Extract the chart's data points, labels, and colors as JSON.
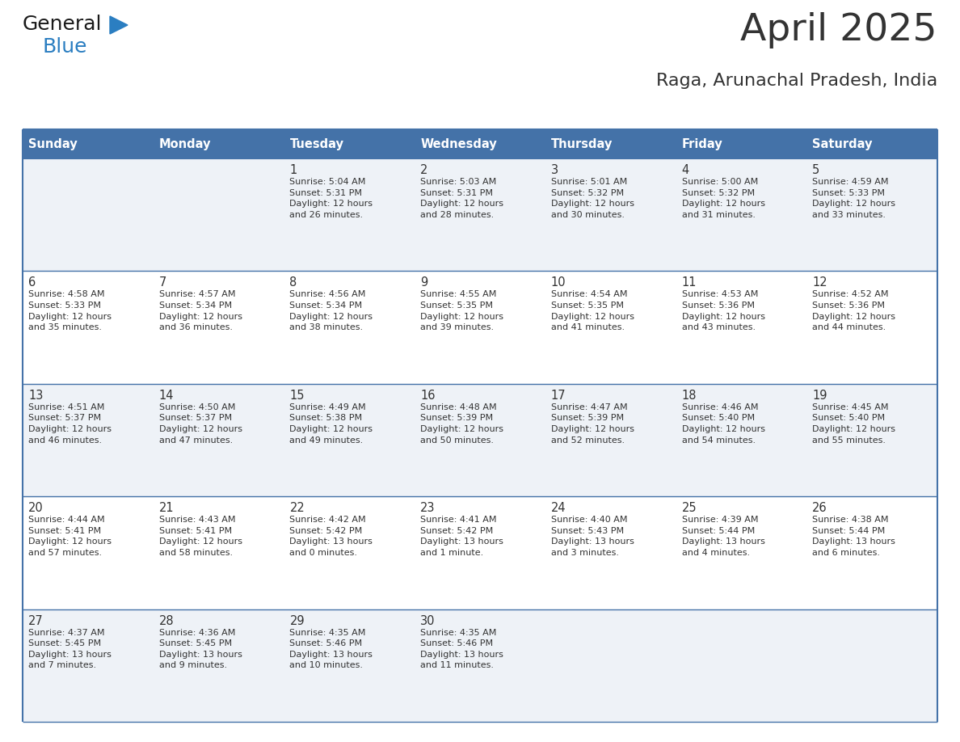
{
  "title": "April 2025",
  "subtitle": "Raga, Arunachal Pradesh, India",
  "header_bg": "#4472a8",
  "header_text_color": "#ffffff",
  "odd_row_bg": "#eef2f7",
  "even_row_bg": "#ffffff",
  "border_color": "#4472a8",
  "text_color": "#333333",
  "days_of_week": [
    "Sunday",
    "Monday",
    "Tuesday",
    "Wednesday",
    "Thursday",
    "Friday",
    "Saturday"
  ],
  "weeks": [
    [
      {
        "day": "",
        "info": ""
      },
      {
        "day": "",
        "info": ""
      },
      {
        "day": "1",
        "info": "Sunrise: 5:04 AM\nSunset: 5:31 PM\nDaylight: 12 hours\nand 26 minutes."
      },
      {
        "day": "2",
        "info": "Sunrise: 5:03 AM\nSunset: 5:31 PM\nDaylight: 12 hours\nand 28 minutes."
      },
      {
        "day": "3",
        "info": "Sunrise: 5:01 AM\nSunset: 5:32 PM\nDaylight: 12 hours\nand 30 minutes."
      },
      {
        "day": "4",
        "info": "Sunrise: 5:00 AM\nSunset: 5:32 PM\nDaylight: 12 hours\nand 31 minutes."
      },
      {
        "day": "5",
        "info": "Sunrise: 4:59 AM\nSunset: 5:33 PM\nDaylight: 12 hours\nand 33 minutes."
      }
    ],
    [
      {
        "day": "6",
        "info": "Sunrise: 4:58 AM\nSunset: 5:33 PM\nDaylight: 12 hours\nand 35 minutes."
      },
      {
        "day": "7",
        "info": "Sunrise: 4:57 AM\nSunset: 5:34 PM\nDaylight: 12 hours\nand 36 minutes."
      },
      {
        "day": "8",
        "info": "Sunrise: 4:56 AM\nSunset: 5:34 PM\nDaylight: 12 hours\nand 38 minutes."
      },
      {
        "day": "9",
        "info": "Sunrise: 4:55 AM\nSunset: 5:35 PM\nDaylight: 12 hours\nand 39 minutes."
      },
      {
        "day": "10",
        "info": "Sunrise: 4:54 AM\nSunset: 5:35 PM\nDaylight: 12 hours\nand 41 minutes."
      },
      {
        "day": "11",
        "info": "Sunrise: 4:53 AM\nSunset: 5:36 PM\nDaylight: 12 hours\nand 43 minutes."
      },
      {
        "day": "12",
        "info": "Sunrise: 4:52 AM\nSunset: 5:36 PM\nDaylight: 12 hours\nand 44 minutes."
      }
    ],
    [
      {
        "day": "13",
        "info": "Sunrise: 4:51 AM\nSunset: 5:37 PM\nDaylight: 12 hours\nand 46 minutes."
      },
      {
        "day": "14",
        "info": "Sunrise: 4:50 AM\nSunset: 5:37 PM\nDaylight: 12 hours\nand 47 minutes."
      },
      {
        "day": "15",
        "info": "Sunrise: 4:49 AM\nSunset: 5:38 PM\nDaylight: 12 hours\nand 49 minutes."
      },
      {
        "day": "16",
        "info": "Sunrise: 4:48 AM\nSunset: 5:39 PM\nDaylight: 12 hours\nand 50 minutes."
      },
      {
        "day": "17",
        "info": "Sunrise: 4:47 AM\nSunset: 5:39 PM\nDaylight: 12 hours\nand 52 minutes."
      },
      {
        "day": "18",
        "info": "Sunrise: 4:46 AM\nSunset: 5:40 PM\nDaylight: 12 hours\nand 54 minutes."
      },
      {
        "day": "19",
        "info": "Sunrise: 4:45 AM\nSunset: 5:40 PM\nDaylight: 12 hours\nand 55 minutes."
      }
    ],
    [
      {
        "day": "20",
        "info": "Sunrise: 4:44 AM\nSunset: 5:41 PM\nDaylight: 12 hours\nand 57 minutes."
      },
      {
        "day": "21",
        "info": "Sunrise: 4:43 AM\nSunset: 5:41 PM\nDaylight: 12 hours\nand 58 minutes."
      },
      {
        "day": "22",
        "info": "Sunrise: 4:42 AM\nSunset: 5:42 PM\nDaylight: 13 hours\nand 0 minutes."
      },
      {
        "day": "23",
        "info": "Sunrise: 4:41 AM\nSunset: 5:42 PM\nDaylight: 13 hours\nand 1 minute."
      },
      {
        "day": "24",
        "info": "Sunrise: 4:40 AM\nSunset: 5:43 PM\nDaylight: 13 hours\nand 3 minutes."
      },
      {
        "day": "25",
        "info": "Sunrise: 4:39 AM\nSunset: 5:44 PM\nDaylight: 13 hours\nand 4 minutes."
      },
      {
        "day": "26",
        "info": "Sunrise: 4:38 AM\nSunset: 5:44 PM\nDaylight: 13 hours\nand 6 minutes."
      }
    ],
    [
      {
        "day": "27",
        "info": "Sunrise: 4:37 AM\nSunset: 5:45 PM\nDaylight: 13 hours\nand 7 minutes."
      },
      {
        "day": "28",
        "info": "Sunrise: 4:36 AM\nSunset: 5:45 PM\nDaylight: 13 hours\nand 9 minutes."
      },
      {
        "day": "29",
        "info": "Sunrise: 4:35 AM\nSunset: 5:46 PM\nDaylight: 13 hours\nand 10 minutes."
      },
      {
        "day": "30",
        "info": "Sunrise: 4:35 AM\nSunset: 5:46 PM\nDaylight: 13 hours\nand 11 minutes."
      },
      {
        "day": "",
        "info": ""
      },
      {
        "day": "",
        "info": ""
      },
      {
        "day": "",
        "info": ""
      }
    ]
  ],
  "logo_text_general": "General",
  "logo_text_blue": "Blue",
  "logo_color_general": "#1a1a1a",
  "logo_color_blue": "#2b7ec1",
  "logo_triangle_color": "#2b7ec1",
  "fig_width": 11.88,
  "fig_height": 9.18,
  "dpi": 100
}
